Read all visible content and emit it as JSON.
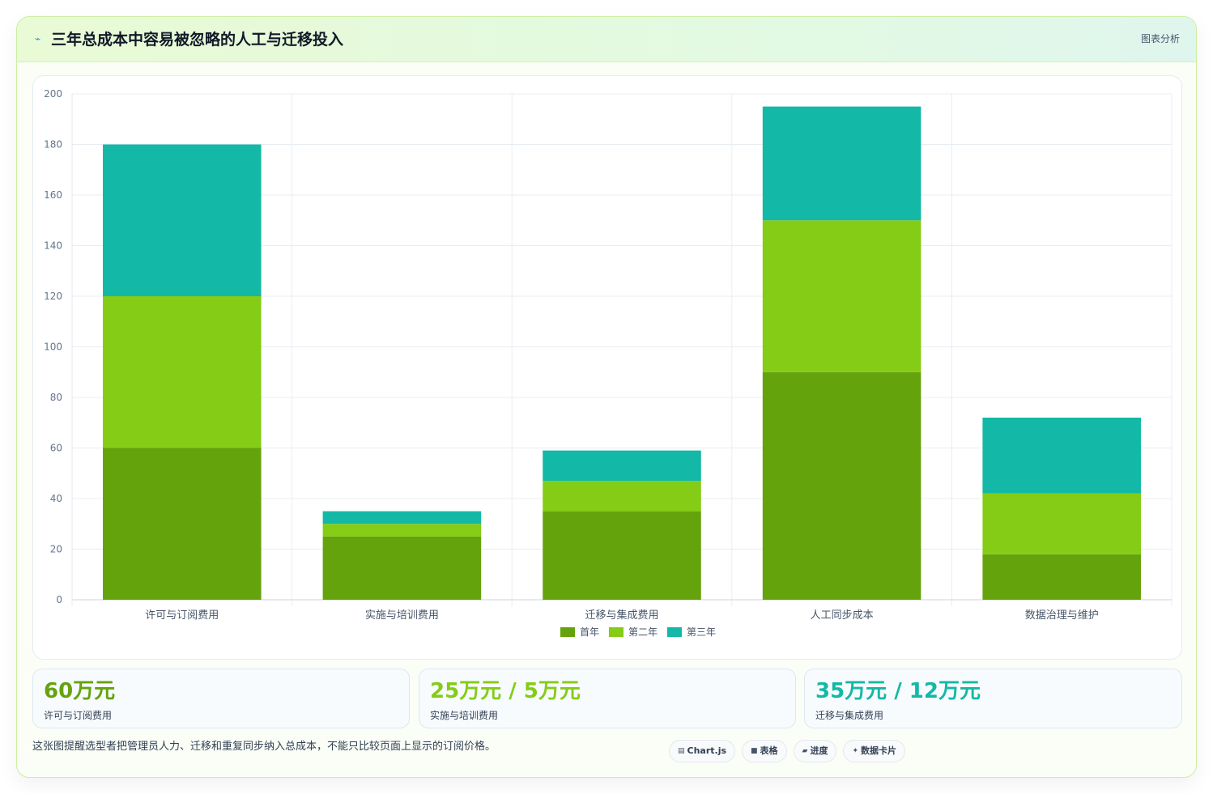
{
  "header": {
    "icon": "trend-icon",
    "title": "三年总成本中容易被忽略的人工与迁移投入",
    "badge": "图表分析"
  },
  "chart_data": {
    "type": "bar",
    "stacked": true,
    "categories": [
      "许可与订阅费用",
      "实施与培训费用",
      "迁移与集成费用",
      "人工同步成本",
      "数据治理与维护"
    ],
    "series": [
      {
        "name": "首年",
        "color": "#65a30d",
        "values": [
          60,
          25,
          35,
          90,
          18
        ]
      },
      {
        "name": "第二年",
        "color": "#84cc16",
        "values": [
          60,
          5,
          12,
          60,
          24
        ]
      },
      {
        "name": "第三年",
        "color": "#14b8a6",
        "values": [
          60,
          5,
          12,
          45,
          30
        ]
      }
    ],
    "ylim": [
      0,
      200
    ],
    "yticks": [
      0,
      20,
      40,
      60,
      80,
      100,
      120,
      140,
      160,
      180,
      200
    ],
    "grid": true,
    "legend": "bottom"
  },
  "stats": [
    {
      "value": "60万元",
      "label": "许可与订阅费用",
      "color": "#65a30d"
    },
    {
      "value": "25万元 / 5万元",
      "label": "实施与培训费用",
      "color": "#84cc16"
    },
    {
      "value": "35万元 / 12万元",
      "label": "迁移与集成费用",
      "color": "#14b8a6"
    }
  ],
  "footnote": "这张图提醒选型者把管理员人力、迁移和重复同步纳入总成本，不能只比较页面上显示的订阅价格。",
  "tags": [
    {
      "icon": "chart-icon",
      "glyph": "▤",
      "label": "Chart.js"
    },
    {
      "icon": "table-icon",
      "glyph": "■",
      "label": "表格"
    },
    {
      "icon": "progress-icon",
      "glyph": "▰",
      "label": "进度"
    },
    {
      "icon": "sparkle-icon",
      "glyph": "✦",
      "label": "数据卡片"
    }
  ]
}
